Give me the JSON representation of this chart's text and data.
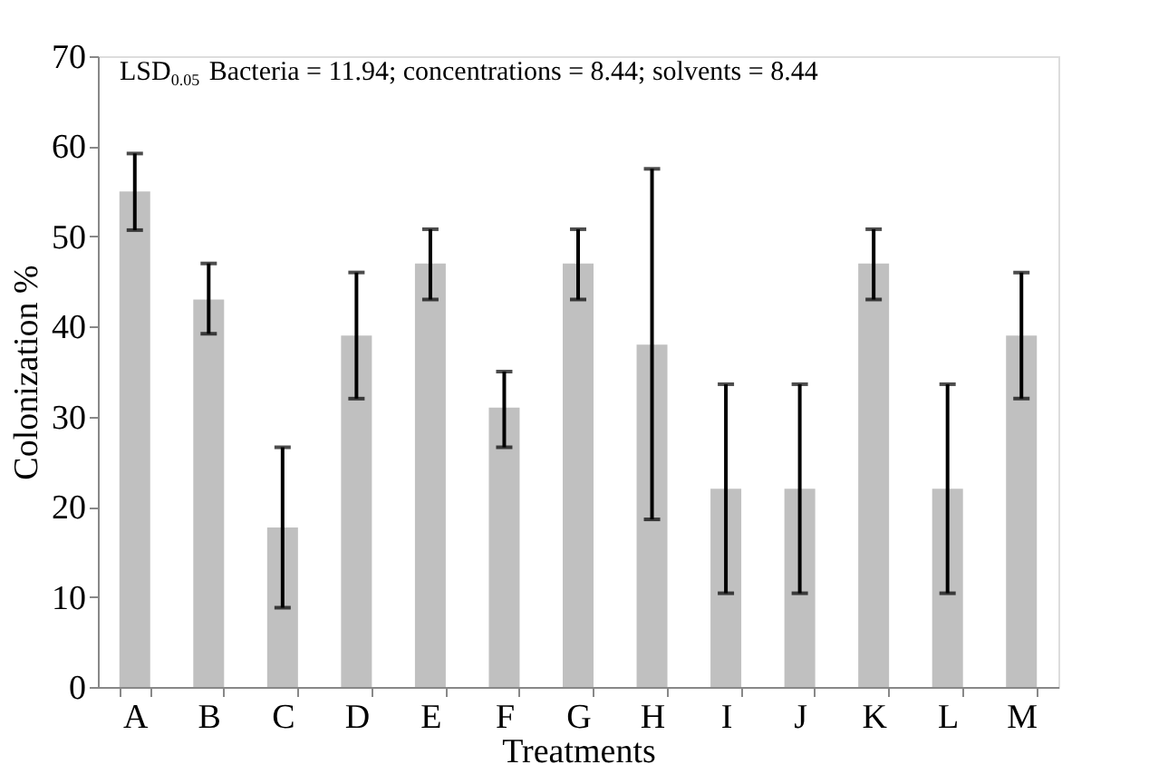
{
  "chart_data": {
    "type": "bar",
    "categories": [
      "A",
      "B",
      "C",
      "D",
      "E",
      "F",
      "G",
      "H",
      "I",
      "J",
      "K",
      "L",
      "M"
    ],
    "values": [
      55,
      43,
      17.7,
      39,
      47,
      31,
      47,
      38,
      22,
      22,
      47,
      22,
      39
    ],
    "errors": [
      [
        50.7,
        59.2
      ],
      [
        39.2,
        47
      ],
      [
        8.8,
        26.6
      ],
      [
        32,
        46
      ],
      [
        43,
        50.8
      ],
      [
        26.6,
        35
      ],
      [
        43,
        50.8
      ],
      [
        18.6,
        57.5
      ],
      [
        10.4,
        33.6
      ],
      [
        10.4,
        33.6
      ],
      [
        43,
        50.8
      ],
      [
        10.4,
        33.6
      ],
      [
        32,
        46
      ]
    ],
    "color": "#c0c0c0",
    "xlabel": "Treatments",
    "ylabel": "Colonization %",
    "ylim": [
      0,
      70
    ],
    "yticks": [
      0,
      10,
      20,
      30,
      40,
      50,
      60,
      70
    ],
    "grid": false,
    "annotations": [
      "LSD$_{0.05}$ Bacteria = 11.94; concentrations = 8.44; solvents = 8.44"
    ]
  }
}
